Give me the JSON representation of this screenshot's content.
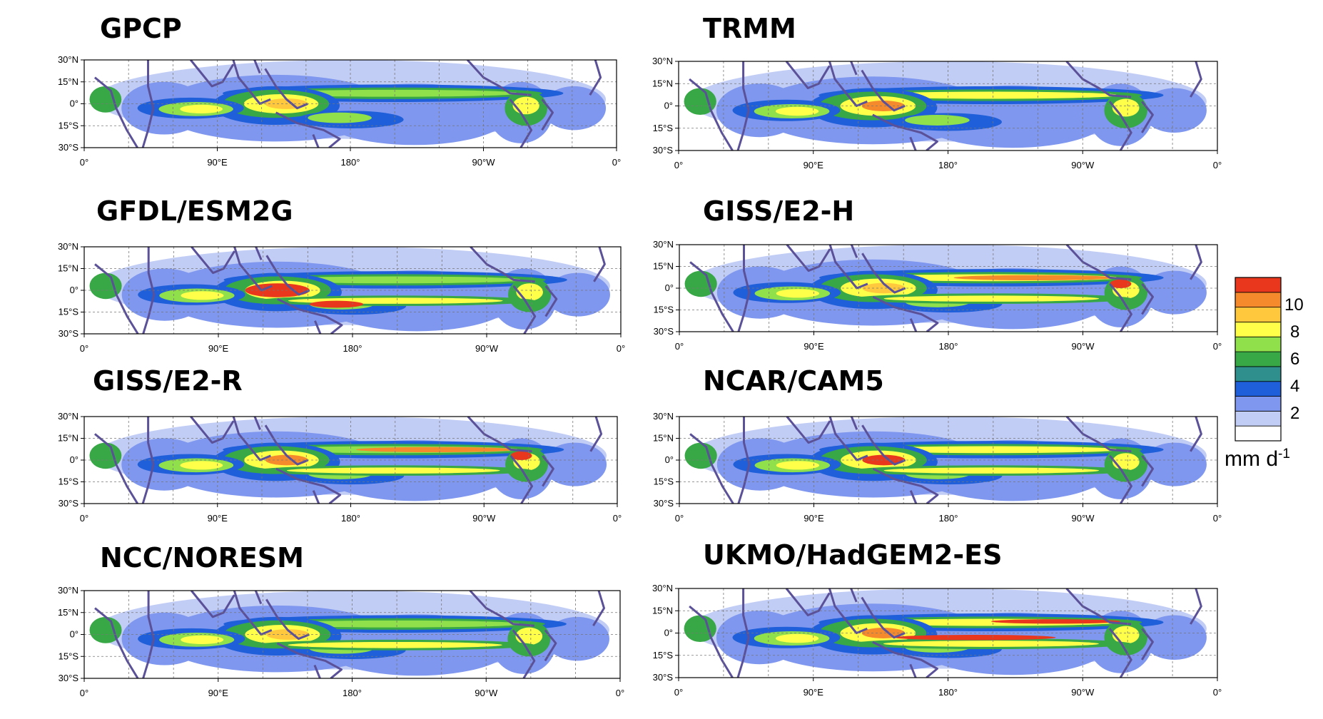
{
  "colors": {
    "scale": [
      "#ffffff",
      "#c2cdf6",
      "#7f97ee",
      "#1f5fd9",
      "#2e8f8c",
      "#38a846",
      "#8fe04a",
      "#ffff4a",
      "#ffc83d",
      "#f58a2c",
      "#e8371d"
    ],
    "coast": "#5b5198",
    "grid": "#777777"
  },
  "legend": {
    "labels": [
      "10",
      "8",
      "6",
      "4",
      "2"
    ],
    "units_base": "mm d",
    "units_exp": "-1"
  },
  "axes": {
    "lat_labels": [
      "30°N",
      "15°N",
      "0°",
      "15°S",
      "30°S"
    ],
    "lon_labels": [
      "0°",
      "90°E",
      "180°",
      "90°W",
      "0°"
    ]
  },
  "panels": [
    {
      "title": "GPCP"
    },
    {
      "title": "TRMM"
    },
    {
      "title": "GFDL/ESM2G"
    },
    {
      "title": "GISS/E2-H"
    },
    {
      "title": "GISS/E2-R"
    },
    {
      "title": "NCAR/CAM5"
    },
    {
      "title": "NCC/NORESM"
    },
    {
      "title": "UKMO/HadGEM2-ES"
    }
  ]
}
